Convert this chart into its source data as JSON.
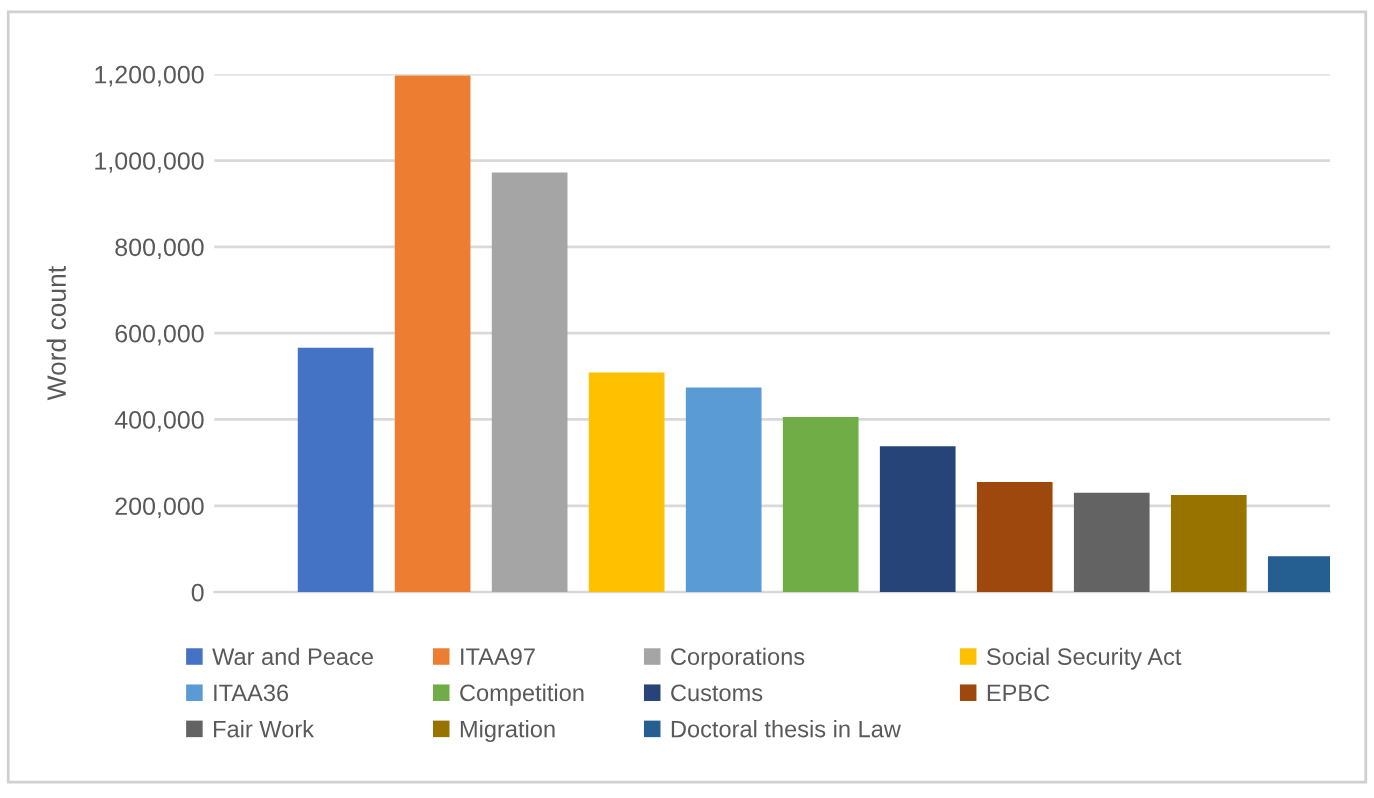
{
  "chart_data": {
    "type": "bar",
    "ylabel": "Word count",
    "categories": [
      null,
      null,
      null,
      null,
      null,
      null,
      null,
      null,
      null,
      null,
      null
    ],
    "series": [
      {
        "name": "War and Peace",
        "color": "#4472c4",
        "values": [
          566000,
          null,
          null,
          null,
          null,
          null,
          null,
          null,
          null,
          null,
          null
        ]
      },
      {
        "name": "ITAA97",
        "color": "#ed7d31",
        "values": [
          null,
          1197000,
          null,
          null,
          null,
          null,
          null,
          null,
          null,
          null,
          null
        ]
      },
      {
        "name": "Corporations",
        "color": "#a5a5a5",
        "values": [
          null,
          null,
          972000,
          null,
          null,
          null,
          null,
          null,
          null,
          null,
          null
        ]
      },
      {
        "name": "Social Security Act",
        "color": "#ffc000",
        "values": [
          null,
          null,
          null,
          509000,
          null,
          null,
          null,
          null,
          null,
          null,
          null
        ]
      },
      {
        "name": "ITAA36",
        "color": "#5b9bd5",
        "values": [
          null,
          null,
          null,
          null,
          474000,
          null,
          null,
          null,
          null,
          null,
          null
        ]
      },
      {
        "name": "Competition",
        "color": "#70ad47",
        "values": [
          null,
          null,
          null,
          null,
          null,
          406000,
          null,
          null,
          null,
          null,
          null
        ]
      },
      {
        "name": "Customs",
        "color": "#264478",
        "values": [
          null,
          null,
          null,
          null,
          null,
          null,
          338000,
          null,
          null,
          null,
          null
        ]
      },
      {
        "name": "EPBC",
        "color": "#9e480e",
        "values": [
          null,
          null,
          null,
          null,
          null,
          null,
          null,
          255000,
          null,
          null,
          null
        ]
      },
      {
        "name": "Fair Work",
        "color": "#636363",
        "values": [
          null,
          null,
          null,
          null,
          null,
          null,
          null,
          null,
          230000,
          null,
          null
        ]
      },
      {
        "name": "Migration",
        "color": "#997300",
        "values": [
          null,
          null,
          null,
          null,
          null,
          null,
          null,
          null,
          null,
          225000,
          null
        ]
      },
      {
        "name": "Doctoral thesis in Law",
        "color": "#255e91",
        "values": [
          null,
          null,
          null,
          null,
          null,
          null,
          null,
          null,
          null,
          null,
          83000
        ]
      }
    ],
    "ylim": [
      0,
      1200000
    ],
    "yticks": [
      0,
      {
        "value": 200000,
        "label": "200,000"
      },
      {
        "value": 400000,
        "label": "400,000"
      },
      {
        "value": 600000,
        "label": "600,000"
      },
      {
        "value": 800000,
        "label": "800,000"
      },
      {
        "value": 1000000,
        "label": "1,000,000"
      },
      {
        "value": 1200000,
        "label": "1,200,000"
      }
    ],
    "grid": "y",
    "stacked": true,
    "legend": "bottom",
    "tick_labels": "y"
  }
}
